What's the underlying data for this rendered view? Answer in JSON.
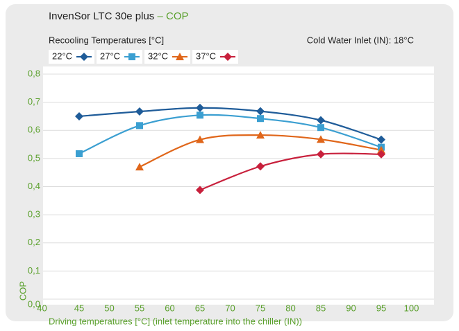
{
  "chart_data": {
    "type": "line",
    "title": "InvenSor LTC 30e plus",
    "title_suffix": "– COP",
    "subtitle": "Recooling Temperatures [°C]",
    "annotation": "Cold Water Inlet (IN): 18°C",
    "x_label": "Driving temperatures [°C] (inlet temperature into the chiller (IN))",
    "y_label": "COP",
    "x": [
      45,
      55,
      65,
      75,
      85,
      95
    ],
    "xlim": [
      40,
      100
    ],
    "xticks": [
      40,
      45,
      50,
      55,
      60,
      65,
      70,
      75,
      80,
      85,
      90,
      95,
      100
    ],
    "ylim": [
      0,
      0.8
    ],
    "yticks": [
      {
        "value": 0,
        "label": "0,0"
      },
      {
        "value": 0.1,
        "label": "0,1"
      },
      {
        "value": 0.2,
        "label": "0,2"
      },
      {
        "value": 0.3,
        "label": "0,3"
      },
      {
        "value": 0.4,
        "label": "0,4"
      },
      {
        "value": 0.5,
        "label": "0,5"
      },
      {
        "value": 0.6,
        "label": "0,6"
      },
      {
        "value": 0.7,
        "label": "0,7"
      },
      {
        "value": 0.8,
        "label": "0,8"
      }
    ],
    "grid": true,
    "series": [
      {
        "name": "22°C",
        "color": "#1f5c99",
        "marker": "diamond",
        "values": [
          0.65,
          0.667,
          0.68,
          0.668,
          0.636,
          0.567
        ]
      },
      {
        "name": "27°C",
        "color": "#3b9fd1",
        "marker": "square",
        "values": [
          0.517,
          0.617,
          0.654,
          0.642,
          0.61,
          0.54
        ]
      },
      {
        "name": "32°C",
        "color": "#e0661a",
        "marker": "triangle",
        "values": [
          null,
          0.47,
          0.567,
          0.583,
          0.568,
          0.53
        ]
      },
      {
        "name": "37°C",
        "color": "#c8203c",
        "marker": "diamond",
        "values": [
          null,
          null,
          0.388,
          0.472,
          0.515,
          0.515
        ]
      }
    ]
  }
}
